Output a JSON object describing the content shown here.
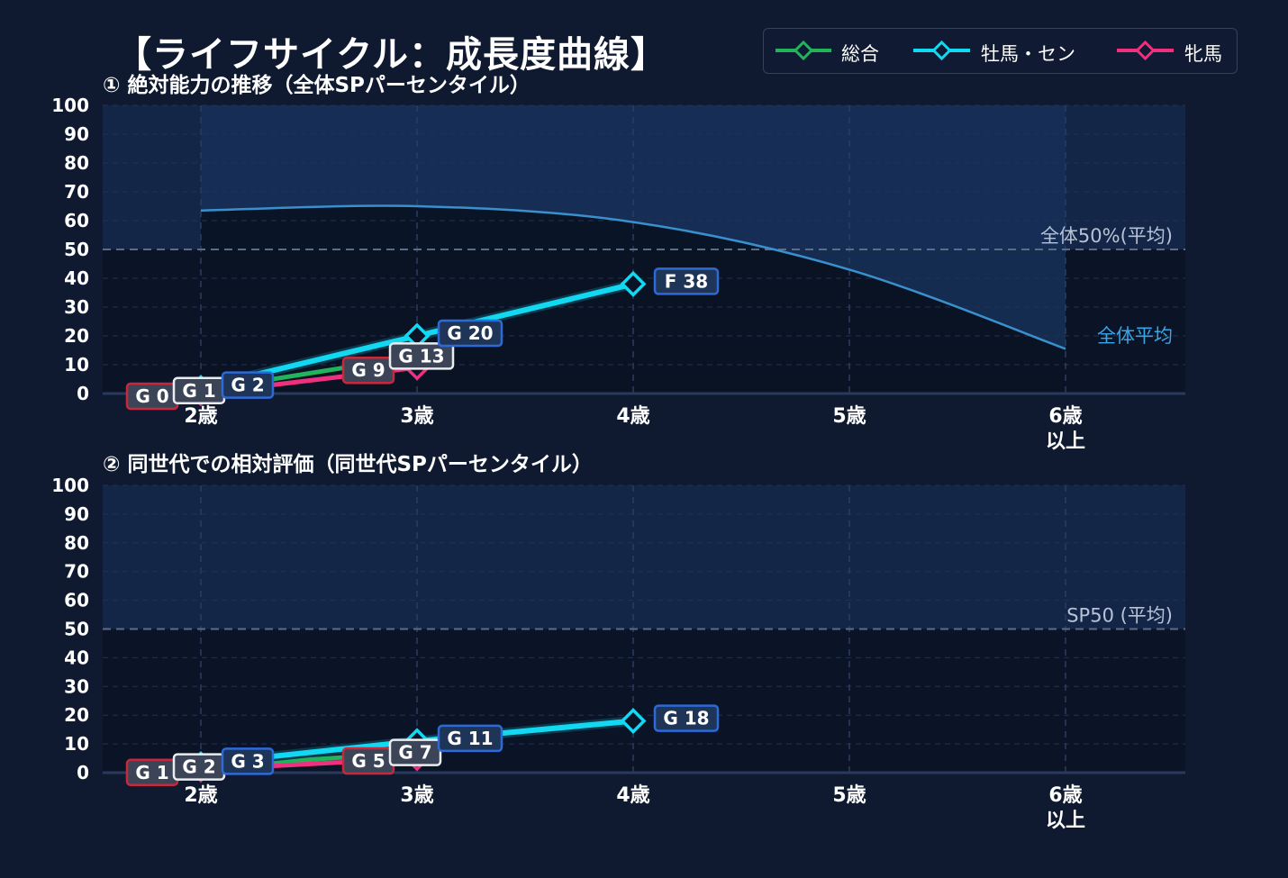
{
  "title": "【ライフサイクル：成長度曲線】",
  "legend": [
    {
      "name": "総合",
      "color": "#22b45a"
    },
    {
      "name": "牡馬・セン",
      "color": "#12d8f2"
    },
    {
      "name": "牝馬",
      "color": "#f0307f"
    }
  ],
  "chart_data": [
    {
      "type": "line",
      "title": "① 絶対能力の推移（全体SPパーセンタイル）",
      "categories": [
        "2歳",
        "3歳",
        "4歳",
        "5歳",
        "6歳\n以上"
      ],
      "ylim": [
        0,
        100
      ],
      "yticks": [
        0,
        10,
        20,
        30,
        40,
        50,
        60,
        70,
        80,
        90,
        100
      ],
      "grid": true,
      "reference_line": {
        "value": 50,
        "label": "全体50%(平均)"
      },
      "average_curve": {
        "label": "全体平均",
        "values": [
          63.5,
          65,
          59.5,
          43,
          15.5
        ]
      },
      "series": [
        {
          "name": "総合",
          "color": "#22b45a",
          "values": [
            1,
            13,
            null,
            null,
            null
          ],
          "labels": [
            "G 1",
            "G 13",
            null,
            null,
            null
          ]
        },
        {
          "name": "牝馬",
          "color": "#f0307f",
          "values": [
            0,
            9,
            null,
            null,
            null
          ],
          "labels": [
            "G 0",
            "G 9",
            null,
            null,
            null
          ]
        },
        {
          "name": "牡馬・セン",
          "color": "#12d8f2",
          "values": [
            2,
            20,
            38,
            null,
            null
          ],
          "labels": [
            "G 2",
            "G 20",
            "F 38",
            null,
            null
          ]
        }
      ]
    },
    {
      "type": "line",
      "title": "② 同世代での相対評価（同世代SPパーセンタイル）",
      "categories": [
        "2歳",
        "3歳",
        "4歳",
        "5歳",
        "6歳\n以上"
      ],
      "ylim": [
        0,
        100
      ],
      "yticks": [
        0,
        10,
        20,
        30,
        40,
        50,
        60,
        70,
        80,
        90,
        100
      ],
      "grid": true,
      "reference_line": {
        "value": 50,
        "label": "SP50 (平均)"
      },
      "series": [
        {
          "name": "総合",
          "color": "#22b45a",
          "values": [
            2,
            7,
            null,
            null,
            null
          ],
          "labels": [
            "G 2",
            "G 7",
            null,
            null,
            null
          ]
        },
        {
          "name": "牝馬",
          "color": "#f0307f",
          "values": [
            1,
            5,
            null,
            null,
            null
          ],
          "labels": [
            "G 1",
            "G 5",
            null,
            null,
            null
          ]
        },
        {
          "name": "牡馬・セン",
          "color": "#12d8f2",
          "values": [
            3,
            11,
            18,
            null,
            null
          ],
          "labels": [
            "G 3",
            "G 11",
            "G 18",
            null,
            null
          ]
        }
      ]
    }
  ]
}
